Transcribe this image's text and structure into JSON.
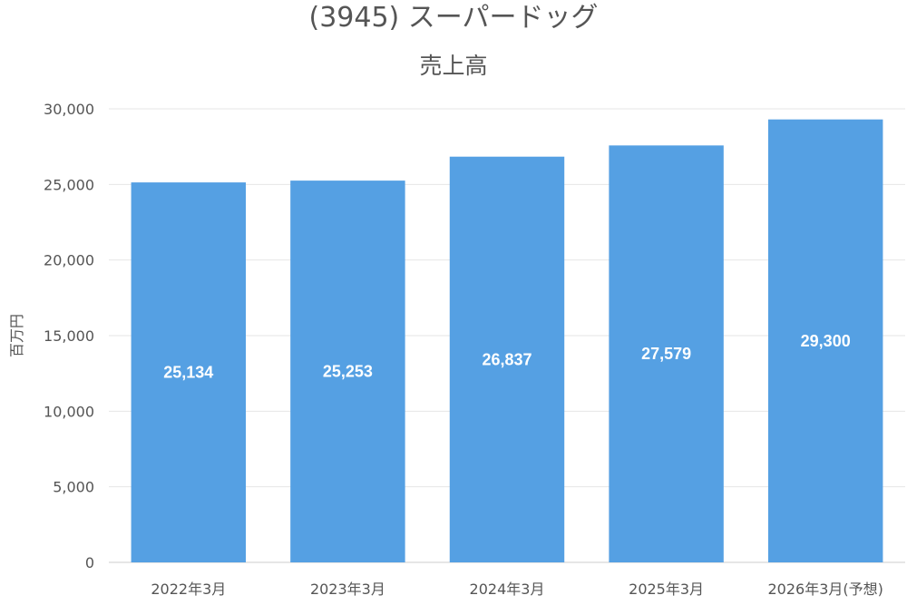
{
  "chart_data": {
    "type": "bar",
    "title": "(3945) スーパードッグ",
    "subtitle": "売上高",
    "xlabel": "",
    "ylabel": "百万円",
    "categories": [
      "2022年3月",
      "2023年3月",
      "2024年3月",
      "2025年3月",
      "2026年3月(予想)"
    ],
    "values": [
      25134,
      25253,
      26837,
      27579,
      29300
    ],
    "data_labels": [
      "25,134",
      "25,253",
      "26,837",
      "27,579",
      "29,300"
    ],
    "ylim": [
      0,
      30000
    ],
    "yticks": [
      0,
      5000,
      10000,
      15000,
      20000,
      25000,
      30000
    ],
    "ytick_labels": [
      "0",
      "5,000",
      "10,000",
      "15,000",
      "20,000",
      "25,000",
      "30,000"
    ],
    "grid": true,
    "bar_color": "#55a0e3"
  }
}
